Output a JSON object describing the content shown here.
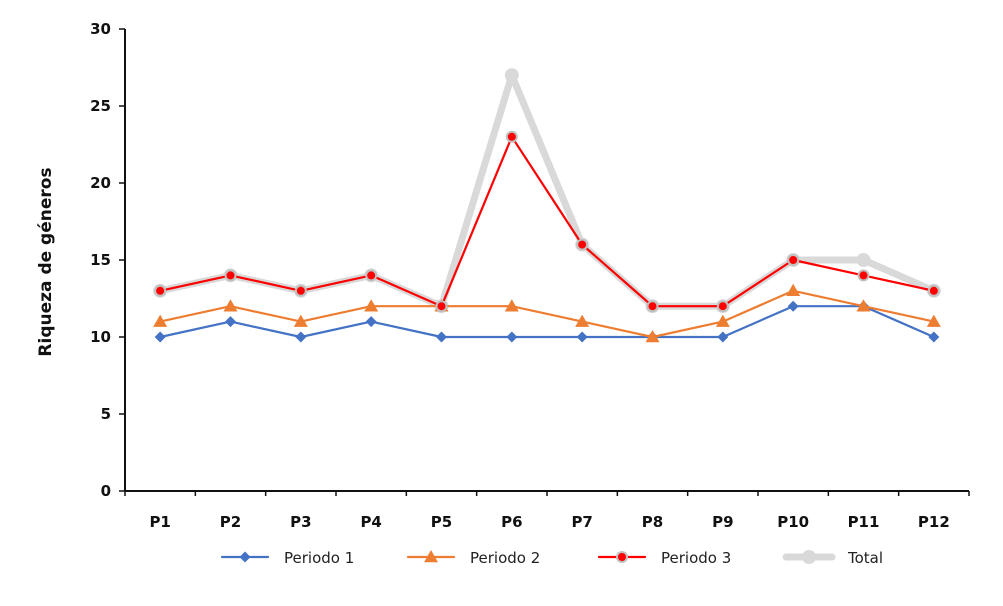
{
  "chart_data": {
    "type": "line",
    "title": "",
    "xlabel": "",
    "ylabel": "Riqueza de géneros",
    "ylim": [
      0,
      30
    ],
    "yticks": [
      0,
      5,
      10,
      15,
      20,
      25,
      30
    ],
    "grid": false,
    "legend_position": "bottom",
    "categories": [
      "P1",
      "P2",
      "P3",
      "P4",
      "P5",
      "P6",
      "P7",
      "P8",
      "P9",
      "P10",
      "P11",
      "P12"
    ],
    "series": [
      {
        "name": "Total",
        "color": "#d9d9d9",
        "marker": "circle",
        "values": [
          13,
          14,
          13,
          14,
          12,
          27,
          16,
          12,
          12,
          15,
          15,
          13
        ]
      },
      {
        "name": "Periodo 1",
        "color": "#4472c4",
        "marker": "diamond",
        "values": [
          10,
          11,
          10,
          11,
          10,
          10,
          10,
          10,
          10,
          12,
          12,
          10
        ]
      },
      {
        "name": "Periodo 2",
        "color": "#ed7d31",
        "marker": "triangle",
        "values": [
          11,
          12,
          11,
          12,
          12,
          12,
          11,
          10,
          11,
          13,
          12,
          11
        ]
      },
      {
        "name": "Periodo 3",
        "color": "#ff0000",
        "marker": "circle",
        "values": [
          13,
          14,
          13,
          14,
          12,
          23,
          16,
          12,
          12,
          15,
          14,
          13
        ]
      }
    ],
    "legend_order": [
      "Periodo 1",
      "Periodo 2",
      "Periodo 3",
      "Total"
    ]
  }
}
